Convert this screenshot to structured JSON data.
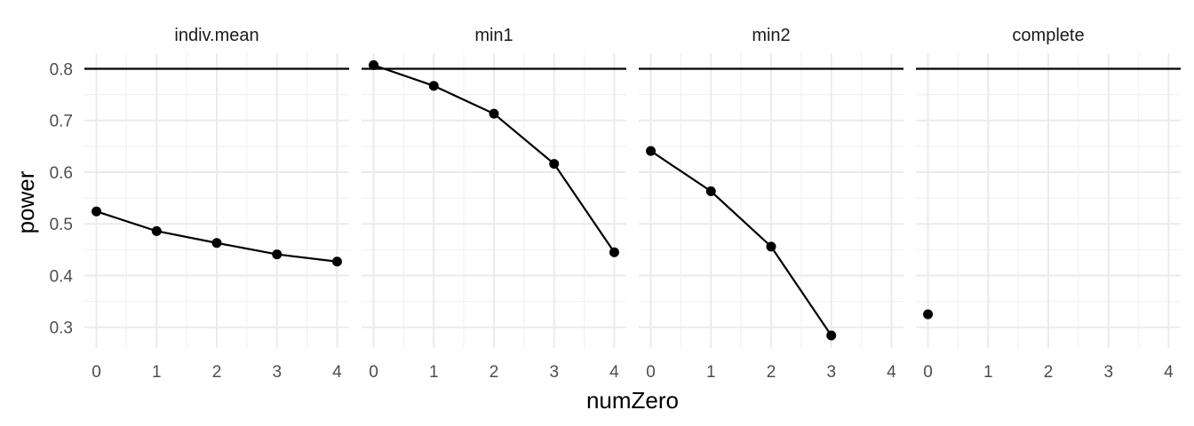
{
  "chart_data": {
    "type": "line",
    "facet_variable": "panel",
    "xlabel": "numZero",
    "ylabel": "power",
    "xlim": [
      -0.2,
      4.2
    ],
    "ylim": [
      0.26,
      0.83
    ],
    "x_ticks": [
      0,
      1,
      2,
      3,
      4
    ],
    "y_ticks": [
      0.3,
      0.4,
      0.5,
      0.6,
      0.7,
      0.8
    ],
    "y_tick_labels": [
      "0.3",
      "0.4",
      "0.5",
      "0.6",
      "0.7",
      "0.8"
    ],
    "reference_line": 0.8,
    "grid": true,
    "panels": [
      {
        "name": "indiv.mean",
        "x": [
          0,
          1,
          2,
          3,
          4
        ],
        "y": [
          0.524,
          0.486,
          0.463,
          0.441,
          0.427
        ]
      },
      {
        "name": "min1",
        "x": [
          0,
          1,
          2,
          3,
          4
        ],
        "y": [
          0.807,
          0.767,
          0.713,
          0.616,
          0.445
        ]
      },
      {
        "name": "min2",
        "x": [
          0,
          1,
          2,
          3
        ],
        "y": [
          0.641,
          0.563,
          0.456,
          0.284
        ]
      },
      {
        "name": "complete",
        "x": [
          0
        ],
        "y": [
          0.325
        ]
      }
    ]
  },
  "colors": {
    "grid_major": "#ebebeb",
    "grid_minor": "#f2f2f2",
    "series": "#000000",
    "reference_line": "#000000"
  }
}
